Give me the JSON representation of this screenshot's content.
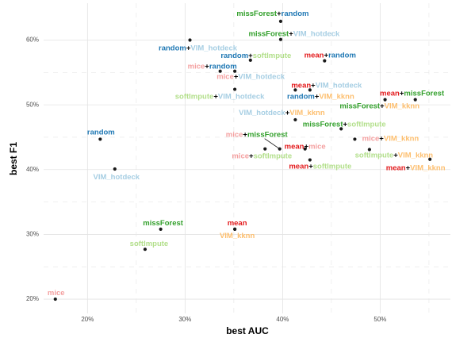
{
  "chart_data": {
    "type": "scatter",
    "x_label": "best AUC",
    "y_label": "best F1",
    "xlim": [
      15.5,
      57.2
    ],
    "ylim": [
      17.8,
      65.7
    ],
    "xticks": [
      {
        "value": 20,
        "label": "20%"
      },
      {
        "value": 30,
        "label": "30%"
      },
      {
        "value": 40,
        "label": "40%"
      },
      {
        "value": 50,
        "label": "50%"
      }
    ],
    "yticks": [
      {
        "value": 20,
        "label": "20%"
      },
      {
        "value": 30,
        "label": "30%"
      },
      {
        "value": 40,
        "label": "40%"
      },
      {
        "value": 50,
        "label": "50%"
      },
      {
        "value": 60,
        "label": "60%"
      }
    ],
    "xminor": [
      25,
      35,
      45,
      55
    ],
    "yminor": [
      25,
      35,
      45,
      55
    ],
    "grid": true,
    "point_color": "#1a1a1a",
    "colors": {
      "mice": "#f4a0a0",
      "mean": "#e31a1c",
      "missForest": "#33a02c",
      "softImpute": "#b2df8a",
      "random": "#1f78b4",
      "VIM_hotdeck": "#a6cee3",
      "VIM_kknn": "#fdbf6f",
      "+": "#000000"
    },
    "labels": [
      "missForest+random",
      "missForest+VIM_hotdeck",
      "random+VIM_hotdeck",
      "random+softImpute",
      "mean+random",
      "mice+random",
      "mice+VIM_hotdeck",
      "mean+VIM_hotdeck",
      "softImpute+VIM_hotdeck",
      "random+VIM_kknn",
      "mean+missForest",
      "missForest+VIM_kknn",
      "VIM_hotdeck+VIM_kknn",
      "missForest+softImpute",
      "mice+VIM_kknn",
      "softImpute+VIM_kknn",
      "mean+VIM_kknn",
      "mice+missForest",
      "mean+mice",
      "mice+softImpute",
      "mean+softImpute",
      "random",
      "VIM_hotdeck",
      "missForest",
      "mean",
      "VIM_kknn",
      "softImpute",
      "mice"
    ],
    "x": [
      39.8,
      39.8,
      30.5,
      36.7,
      44.3,
      33.6,
      35.1,
      42.8,
      35.1,
      41.3,
      50.5,
      53.6,
      41.3,
      46.0,
      47.4,
      48.9,
      55.1,
      39.7,
      42.3,
      38.2,
      42.8,
      21.3,
      22.8,
      27.5,
      35.1,
      35.1,
      25.9,
      16.7
    ],
    "values": [
      62.9,
      60.1,
      60.0,
      56.9,
      56.8,
      55.2,
      55.2,
      52.3,
      52.4,
      52.3,
      50.8,
      50.8,
      47.7,
      46.3,
      44.7,
      43.1,
      41.6,
      43.2,
      43.2,
      43.2,
      41.5,
      44.7,
      40.1,
      30.8,
      30.8,
      30.8,
      27.7,
      20.0
    ]
  }
}
